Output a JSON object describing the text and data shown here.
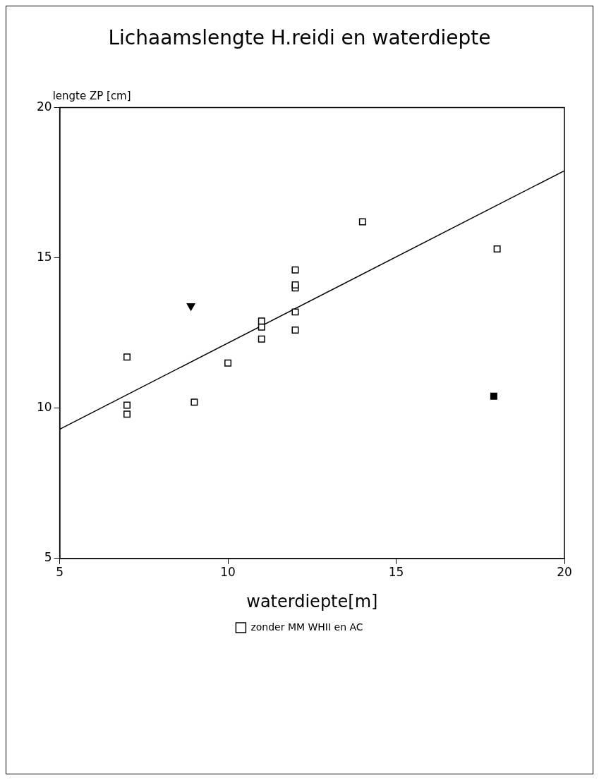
{
  "chart_data": {
    "type": "scatter",
    "title": "Lichaamslengte H.reidi en waterdiepte",
    "xlabel": "waterdiepte[m]",
    "ylabel": "lengte ZP [cm]",
    "xlim": [
      5,
      20
    ],
    "xticks": [
      5,
      10,
      15,
      20
    ],
    "ylim": [
      5,
      20
    ],
    "yticks": [
      5,
      10,
      15,
      20
    ],
    "grid": false,
    "legend": "bottom",
    "series": [
      {
        "name": "zonder MM WHII en AC",
        "marker": "square",
        "color": "#000000",
        "x": [
          7,
          7,
          7,
          9,
          10,
          11,
          11,
          11,
          12,
          12,
          12,
          12,
          12,
          14,
          18
        ],
        "values": [
          9.8,
          10.1,
          11.7,
          10.2,
          11.5,
          12.3,
          12.7,
          12.9,
          12.6,
          13.2,
          14.0,
          14.1,
          14.6,
          16.2,
          15.3
        ]
      },
      {
        "marker": "triangle",
        "color": "#000000",
        "x": [
          8.9
        ],
        "values": [
          13.4
        ]
      },
      {
        "marker": "square",
        "color": "#000000",
        "x": [
          17.9
        ],
        "values": [
          10.4
        ]
      },
      {
        "type": "line",
        "marker": "none",
        "color": "#000000",
        "x": [
          5,
          20
        ],
        "values": [
          9.3,
          17.9
        ]
      }
    ]
  }
}
